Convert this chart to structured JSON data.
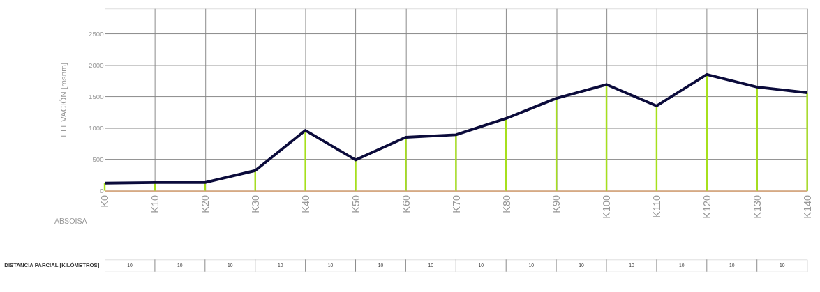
{
  "chart_data": [
    {
      "type": "line",
      "ylabel": "ELEVACIÓN [msnm]",
      "xlabel": "ABSOISA",
      "categories": [
        "K0",
        "K10",
        "K20",
        "K30",
        "K40",
        "K50",
        "K60",
        "K70",
        "K80",
        "K90",
        "K100",
        "K110",
        "K120",
        "K130",
        "K140"
      ],
      "series": [
        {
          "type": "bar",
          "color": "#a6e01c",
          "values": [
            120,
            130,
            130,
            320,
            960,
            490,
            850,
            890,
            1150,
            1470,
            1690,
            1350,
            1850,
            1650,
            1560
          ]
        },
        {
          "type": "line",
          "color": "#0b0b3b",
          "marker": "none",
          "line_style": "solid",
          "values": [
            120,
            130,
            130,
            320,
            960,
            490,
            850,
            890,
            1150,
            1470,
            1690,
            1350,
            1850,
            1650,
            1560
          ]
        }
      ],
      "ylim": [
        0,
        2900
      ],
      "yticks": [
        0,
        500,
        1000,
        1500,
        2000,
        2500
      ],
      "grid": true
    },
    {
      "type": "other",
      "ylabel": "DISTANCIA PARCIAL [KILÓMETROS]",
      "categories": [
        null,
        null,
        null,
        null,
        null,
        null,
        null,
        null,
        null,
        null,
        null,
        null,
        null,
        null
      ],
      "values": [
        10,
        10,
        10,
        10,
        10,
        10,
        10,
        10,
        10,
        10,
        10,
        10,
        10,
        10
      ],
      "data_labels": true
    }
  ]
}
